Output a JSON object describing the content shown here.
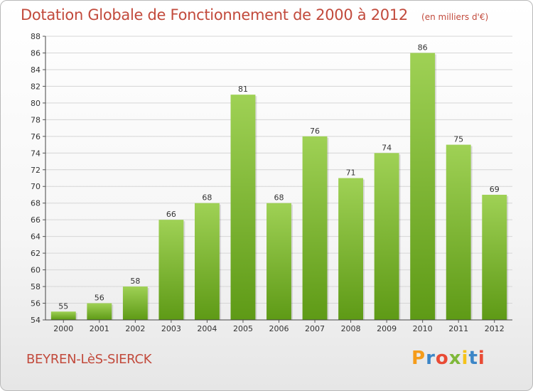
{
  "title": "Dotation Globale de Fonctionnement de 2000 à 2012",
  "subtitle": "(en milliers d'€)",
  "commune": "BEYREN-LèS-SIERCK",
  "logo": {
    "letters": [
      "P",
      "r",
      "o",
      "x",
      "i",
      "t",
      "i"
    ],
    "colors": [
      "#f59c1a",
      "#3c86c7",
      "#e94b35",
      "#7fb83a",
      "#f5c21a",
      "#3c86c7",
      "#e94b35"
    ]
  },
  "colors": {
    "bar_top": "#9fd155",
    "bar_bottom": "#5e9a16",
    "grid": "#d6d6d6",
    "accent": "#c24a3c"
  },
  "chart_data": {
    "type": "bar",
    "title": "Dotation Globale de Fonctionnement de 2000 à 2012",
    "subtitle": "(en milliers d'€)",
    "categories": [
      "2000",
      "2001",
      "2002",
      "2003",
      "2004",
      "2005",
      "2006",
      "2007",
      "2008",
      "2009",
      "2010",
      "2011",
      "2012"
    ],
    "values": [
      55,
      56,
      58,
      66,
      68,
      81,
      68,
      76,
      71,
      74,
      86,
      75,
      69
    ],
    "ylim": [
      54,
      88
    ],
    "yticks": [
      54,
      56,
      58,
      60,
      62,
      64,
      66,
      68,
      70,
      72,
      74,
      76,
      78,
      80,
      82,
      84,
      86,
      88
    ],
    "grid": true,
    "xlabel": "",
    "ylabel": ""
  }
}
